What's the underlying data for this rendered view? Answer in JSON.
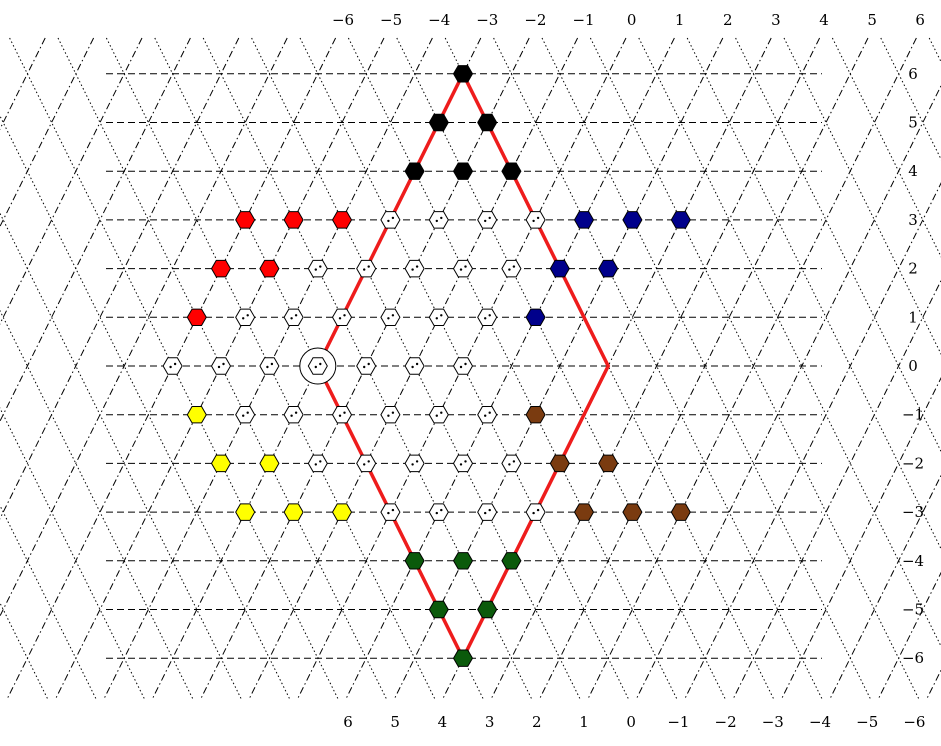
{
  "tick_labels": {
    "right": [
      "6",
      "5",
      "4",
      "3",
      "2",
      "1",
      "0",
      "−1",
      "−2",
      "−3",
      "−4",
      "−5",
      "−6"
    ],
    "top": [
      "−6",
      "−5",
      "−4",
      "−3",
      "−2",
      "−1",
      "0",
      "1",
      "2",
      "3",
      "4",
      "5",
      "6"
    ],
    "bottom": [
      "6",
      "5",
      "4",
      "3",
      "2",
      "1",
      "0",
      "−1",
      "−2",
      "−3",
      "−4",
      "−5",
      "−6"
    ]
  },
  "colors": {
    "black": "#000000",
    "red": "#ff0000",
    "blue": "#00008b",
    "yellow": "#ffff00",
    "brown": "#7a3b10",
    "green": "#0b5a0b",
    "white": "#ffffff",
    "diamond": "#ee1c1c"
  },
  "nodes": [
    {
      "row": 6,
      "k": 0,
      "color": "black",
      "icon": "hexagon-filled"
    },
    {
      "row": 5,
      "k": 0,
      "color": "black",
      "icon": "hexagon-filled"
    },
    {
      "row": 5,
      "k": 1,
      "color": "black",
      "icon": "hexagon-filled"
    },
    {
      "row": 4,
      "k": 0,
      "color": "black",
      "icon": "hexagon-filled"
    },
    {
      "row": 4,
      "k": 1,
      "color": "black",
      "icon": "hexagon-filled"
    },
    {
      "row": 4,
      "k": 2,
      "color": "black",
      "icon": "hexagon-filled"
    },
    {
      "row": 3,
      "k": 0,
      "color": "red",
      "icon": "hexagon-filled"
    },
    {
      "row": 3,
      "k": 1,
      "color": "red",
      "icon": "hexagon-filled"
    },
    {
      "row": 3,
      "k": 2,
      "color": "red",
      "icon": "hexagon-filled"
    },
    {
      "row": 3,
      "k": 3,
      "color": "white",
      "icon": "hexagon-outline"
    },
    {
      "row": 3,
      "k": 4,
      "color": "white",
      "icon": "hexagon-outline"
    },
    {
      "row": 3,
      "k": 5,
      "color": "white",
      "icon": "hexagon-outline"
    },
    {
      "row": 3,
      "k": 6,
      "color": "white",
      "icon": "hexagon-outline"
    },
    {
      "row": 3,
      "k": 7,
      "color": "blue",
      "icon": "hexagon-filled"
    },
    {
      "row": 3,
      "k": 8,
      "color": "blue",
      "icon": "hexagon-filled"
    },
    {
      "row": 3,
      "k": 9,
      "color": "blue",
      "icon": "hexagon-filled"
    },
    {
      "row": 2,
      "k": 0,
      "color": "red",
      "icon": "hexagon-filled"
    },
    {
      "row": 2,
      "k": 1,
      "color": "red",
      "icon": "hexagon-filled"
    },
    {
      "row": 2,
      "k": 2,
      "color": "white",
      "icon": "hexagon-outline"
    },
    {
      "row": 2,
      "k": 3,
      "color": "white",
      "icon": "hexagon-outline"
    },
    {
      "row": 2,
      "k": 4,
      "color": "white",
      "icon": "hexagon-outline"
    },
    {
      "row": 2,
      "k": 5,
      "color": "white",
      "icon": "hexagon-outline"
    },
    {
      "row": 2,
      "k": 6,
      "color": "white",
      "icon": "hexagon-outline"
    },
    {
      "row": 2,
      "k": 7,
      "color": "blue",
      "icon": "hexagon-filled"
    },
    {
      "row": 2,
      "k": 8,
      "color": "blue",
      "icon": "hexagon-filled"
    },
    {
      "row": 1,
      "k": 0,
      "color": "red",
      "icon": "hexagon-filled"
    },
    {
      "row": 1,
      "k": 1,
      "color": "white",
      "icon": "hexagon-outline"
    },
    {
      "row": 1,
      "k": 2,
      "color": "white",
      "icon": "hexagon-outline"
    },
    {
      "row": 1,
      "k": 3,
      "color": "white",
      "icon": "hexagon-outline"
    },
    {
      "row": 1,
      "k": 4,
      "color": "white",
      "icon": "hexagon-outline"
    },
    {
      "row": 1,
      "k": 5,
      "color": "white",
      "icon": "hexagon-outline"
    },
    {
      "row": 1,
      "k": 6,
      "color": "white",
      "icon": "hexagon-outline"
    },
    {
      "row": 1,
      "k": 7,
      "color": "blue",
      "icon": "hexagon-filled"
    },
    {
      "row": 0,
      "k": 0,
      "color": "white",
      "icon": "hexagon-outline"
    },
    {
      "row": 0,
      "k": 1,
      "color": "white",
      "icon": "hexagon-outline"
    },
    {
      "row": 0,
      "k": 2,
      "color": "white",
      "icon": "hexagon-outline"
    },
    {
      "row": 0,
      "k": 3,
      "color": "white",
      "icon": "hexagon-outline",
      "center": true
    },
    {
      "row": 0,
      "k": 4,
      "color": "white",
      "icon": "hexagon-outline"
    },
    {
      "row": 0,
      "k": 5,
      "color": "white",
      "icon": "hexagon-outline"
    },
    {
      "row": 0,
      "k": 6,
      "color": "white",
      "icon": "hexagon-outline"
    },
    {
      "row": -1,
      "k": 0,
      "color": "yellow",
      "icon": "hexagon-filled"
    },
    {
      "row": -1,
      "k": 1,
      "color": "white",
      "icon": "hexagon-outline"
    },
    {
      "row": -1,
      "k": 2,
      "color": "white",
      "icon": "hexagon-outline"
    },
    {
      "row": -1,
      "k": 3,
      "color": "white",
      "icon": "hexagon-outline"
    },
    {
      "row": -1,
      "k": 4,
      "color": "white",
      "icon": "hexagon-outline"
    },
    {
      "row": -1,
      "k": 5,
      "color": "white",
      "icon": "hexagon-outline"
    },
    {
      "row": -1,
      "k": 6,
      "color": "white",
      "icon": "hexagon-outline"
    },
    {
      "row": -1,
      "k": 7,
      "color": "brown",
      "icon": "hexagon-filled"
    },
    {
      "row": -2,
      "k": 0,
      "color": "yellow",
      "icon": "hexagon-filled"
    },
    {
      "row": -2,
      "k": 1,
      "color": "yellow",
      "icon": "hexagon-filled"
    },
    {
      "row": -2,
      "k": 2,
      "color": "white",
      "icon": "hexagon-outline"
    },
    {
      "row": -2,
      "k": 3,
      "color": "white",
      "icon": "hexagon-outline"
    },
    {
      "row": -2,
      "k": 4,
      "color": "white",
      "icon": "hexagon-outline"
    },
    {
      "row": -2,
      "k": 5,
      "color": "white",
      "icon": "hexagon-outline"
    },
    {
      "row": -2,
      "k": 6,
      "color": "white",
      "icon": "hexagon-outline"
    },
    {
      "row": -2,
      "k": 7,
      "color": "brown",
      "icon": "hexagon-filled"
    },
    {
      "row": -2,
      "k": 8,
      "color": "brown",
      "icon": "hexagon-filled"
    },
    {
      "row": -3,
      "k": 0,
      "color": "yellow",
      "icon": "hexagon-filled"
    },
    {
      "row": -3,
      "k": 1,
      "color": "yellow",
      "icon": "hexagon-filled"
    },
    {
      "row": -3,
      "k": 2,
      "color": "yellow",
      "icon": "hexagon-filled"
    },
    {
      "row": -3,
      "k": 3,
      "color": "white",
      "icon": "hexagon-outline"
    },
    {
      "row": -3,
      "k": 4,
      "color": "white",
      "icon": "hexagon-outline"
    },
    {
      "row": -3,
      "k": 5,
      "color": "white",
      "icon": "hexagon-outline"
    },
    {
      "row": -3,
      "k": 6,
      "color": "white",
      "icon": "hexagon-outline"
    },
    {
      "row": -3,
      "k": 7,
      "color": "brown",
      "icon": "hexagon-filled"
    },
    {
      "row": -3,
      "k": 8,
      "color": "brown",
      "icon": "hexagon-filled"
    },
    {
      "row": -3,
      "k": 9,
      "color": "brown",
      "icon": "hexagon-filled"
    },
    {
      "row": -4,
      "k": 0,
      "color": "green",
      "icon": "hexagon-filled"
    },
    {
      "row": -4,
      "k": 1,
      "color": "green",
      "icon": "hexagon-filled"
    },
    {
      "row": -4,
      "k": 2,
      "color": "green",
      "icon": "hexagon-filled"
    },
    {
      "row": -5,
      "k": 0,
      "color": "green",
      "icon": "hexagon-filled"
    },
    {
      "row": -5,
      "k": 1,
      "color": "green",
      "icon": "hexagon-filled"
    },
    {
      "row": -6,
      "k": 0,
      "color": "green",
      "icon": "hexagon-filled"
    }
  ]
}
